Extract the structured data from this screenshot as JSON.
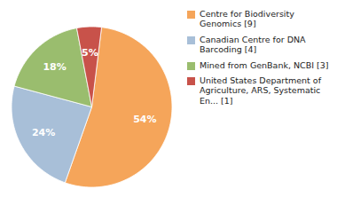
{
  "chart_data": {
    "type": "pie",
    "categories": [
      "Centre for Biodiversity\nGenomics [9]",
      "Canadian Centre for DNA\nBarcoding [4]",
      "Mined from GenBank, NCBI [3]",
      "United States Department of\nAgriculture, ARS, Systematic\nEn... [1]"
    ],
    "values": [
      54,
      24,
      18,
      5
    ],
    "value_labels": [
      "54%",
      "24%",
      "18%",
      "5%"
    ],
    "colors": [
      "#F5A55A",
      "#A8BFD8",
      "#9ABD6E",
      "#C8524A"
    ],
    "data_labels": true,
    "legend": "right"
  }
}
